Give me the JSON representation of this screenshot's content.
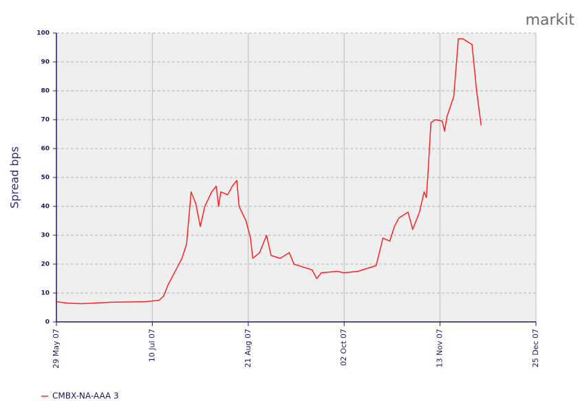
{
  "logo": "markit",
  "chart_data": {
    "type": "line",
    "ylabel": "Spread bps",
    "x": [
      "2007-05-29",
      "2007-06-03",
      "2007-06-09",
      "2007-06-22",
      "2007-07-07",
      "2007-07-13",
      "2007-07-15",
      "2007-07-17",
      "2007-07-19",
      "2007-07-21",
      "2007-07-23",
      "2007-07-25",
      "2007-07-27",
      "2007-07-29",
      "2007-07-31",
      "2007-08-02",
      "2007-08-05",
      "2007-08-07",
      "2007-08-08",
      "2007-08-09",
      "2007-08-12",
      "2007-08-14",
      "2007-08-16",
      "2007-08-17",
      "2007-08-20",
      "2007-08-22",
      "2007-08-23",
      "2007-08-26",
      "2007-08-29",
      "2007-08-31",
      "2007-09-04",
      "2007-09-06",
      "2007-09-08",
      "2007-09-10",
      "2007-09-14",
      "2007-09-18",
      "2007-09-20",
      "2007-09-22",
      "2007-09-29",
      "2007-10-02",
      "2007-10-08",
      "2007-10-16",
      "2007-10-19",
      "2007-10-22",
      "2007-10-24",
      "2007-10-26",
      "2007-10-30",
      "2007-11-01",
      "2007-11-04",
      "2007-11-06",
      "2007-11-07",
      "2007-11-08",
      "2007-11-09",
      "2007-11-11",
      "2007-11-14",
      "2007-11-15",
      "2007-11-16",
      "2007-11-19",
      "2007-11-21",
      "2007-11-23",
      "2007-11-27",
      "2007-11-29",
      "2007-12-01"
    ],
    "series": [
      {
        "name": "CMBX-NA-AAA 3",
        "color": "#ff2020",
        "values": [
          7,
          6.5,
          6.3,
          6.8,
          7,
          7.5,
          9,
          13,
          16,
          19,
          22,
          27,
          45,
          41,
          33,
          40,
          45,
          47,
          40,
          45,
          44,
          47,
          49,
          40,
          35,
          29,
          22,
          24,
          30,
          23,
          22,
          23,
          24,
          20,
          19,
          18,
          15,
          17,
          17.5,
          17,
          17.5,
          19.5,
          29,
          28,
          33,
          36,
          38,
          32,
          38,
          45,
          43,
          55,
          69,
          70,
          69.5,
          66,
          71,
          78,
          98,
          98,
          96,
          80,
          68
        ]
      }
    ],
    "xlim": [
      "2007-05-29",
      "2007-12-25"
    ],
    "xticks": [
      {
        "value": "2007-05-29",
        "label": "29 May 07"
      },
      {
        "value": "2007-07-10",
        "label": "10 Jul 07"
      },
      {
        "value": "2007-08-21",
        "label": "21 Aug 07"
      },
      {
        "value": "2007-10-02",
        "label": "02 Oct 07"
      },
      {
        "value": "2007-11-13",
        "label": "13 Nov 07"
      },
      {
        "value": "2007-12-25",
        "label": "25 Dec 07"
      }
    ],
    "ylim": [
      0,
      100
    ],
    "yticks": [
      0,
      10,
      20,
      30,
      40,
      50,
      60,
      70,
      80,
      90,
      100
    ],
    "grid": true
  }
}
